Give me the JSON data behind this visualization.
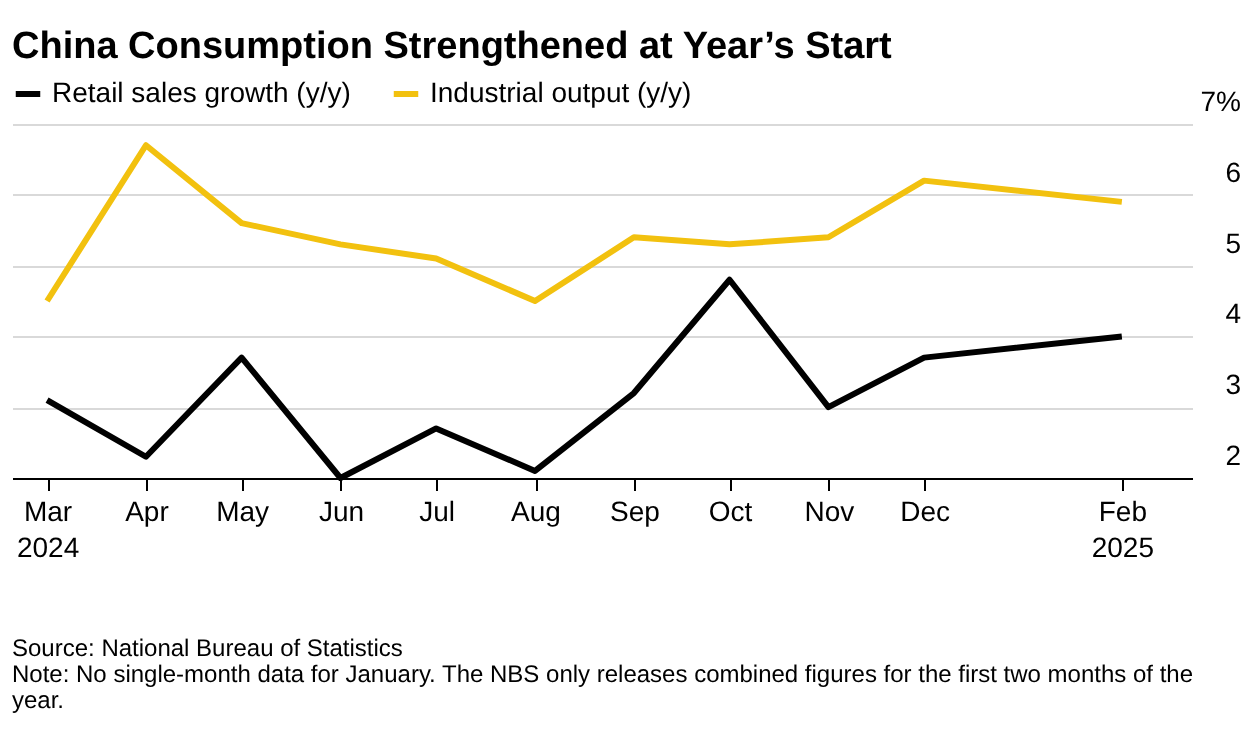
{
  "chart_data": {
    "type": "line",
    "title": "China Consumption Strengthened at Year’s Start",
    "x": [
      "2024-03",
      "2024-04",
      "2024-05",
      "2024-06",
      "2024-07",
      "2024-08",
      "2024-09",
      "2024-10",
      "2024-11",
      "2024-12",
      "2025-02"
    ],
    "series": [
      {
        "name": "Retail sales growth (y/y)",
        "color": "#000000",
        "values": [
          3.1,
          2.3,
          3.7,
          2.0,
          2.7,
          2.1,
          3.2,
          4.8,
          3.0,
          3.7,
          4.0
        ]
      },
      {
        "name": "Industrial output (y/y)",
        "color": "#f2c10f",
        "values": [
          4.5,
          6.7,
          5.6,
          5.3,
          5.1,
          4.5,
          5.4,
          5.3,
          5.4,
          6.2,
          5.9
        ]
      }
    ],
    "xlim": [
      "2024-02-19",
      "2025-02-23"
    ],
    "xticks": [
      {
        "value": "2024-03",
        "label": "Mar 2024"
      },
      {
        "value": "2024-04",
        "label": "Apr"
      },
      {
        "value": "2024-05",
        "label": "May"
      },
      {
        "value": "2024-06",
        "label": "Jun"
      },
      {
        "value": "2024-07",
        "label": "Jul"
      },
      {
        "value": "2024-08",
        "label": "Aug"
      },
      {
        "value": "2024-09",
        "label": "Sep"
      },
      {
        "value": "2024-10",
        "label": "Oct"
      },
      {
        "value": "2024-11",
        "label": "Nov"
      },
      {
        "value": "2024-12",
        "label": "Dec"
      },
      {
        "value": "2025-02",
        "label": "Feb 2025"
      }
    ],
    "ylim": [
      2,
      7
    ],
    "yticks": [
      2,
      3,
      4,
      5,
      6,
      {
        "value": 7,
        "label": "7%"
      }
    ],
    "grid": "y",
    "legend": "top left",
    "line_style": "solid",
    "annotations": [
      "Source: National Bureau of Statistics",
      "Note: No single-month data for January. The NBS only releases combined figures for the first two months of the year."
    ]
  }
}
